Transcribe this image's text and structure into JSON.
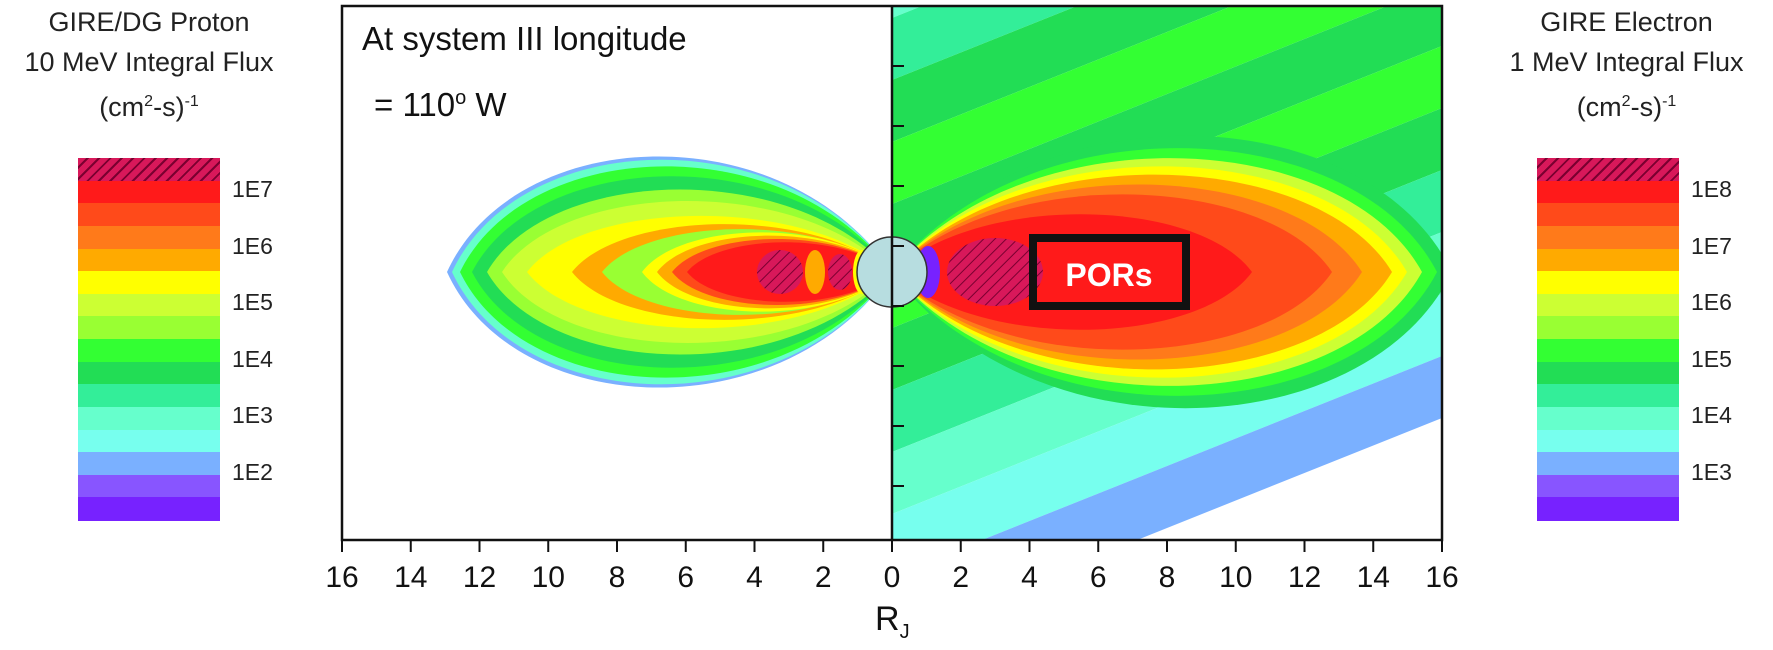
{
  "chart_data": {
    "type": "heatmap",
    "annotation": {
      "line1": "At system III longitude",
      "line2_prefix": "= 110",
      "line2_sup": "o",
      "line2_suffix": " W"
    },
    "region_label": "PORs",
    "xlabel_main": "R",
    "xlabel_sub": "J",
    "x_ticks": [
      "16",
      "14",
      "12",
      "10",
      "8",
      "6",
      "4",
      "2",
      "0",
      "2",
      "4",
      "6",
      "8",
      "10",
      "12",
      "14",
      "16"
    ],
    "xlim": [
      -16,
      16
    ],
    "left_legend": {
      "title_line1": "GIRE/DG Proton",
      "title_line2": "10 MeV Integral Flux",
      "title_unit_prefix": "(cm",
      "title_unit_sup1": "2",
      "title_unit_mid": "-s)",
      "title_unit_sup2": "-1",
      "labels": [
        "1E7",
        "1E6",
        "1E5",
        "1E4",
        "1E3",
        "1E2"
      ]
    },
    "right_legend": {
      "title_line1": "GIRE Electron",
      "title_line2": "1 MeV Integral Flux",
      "title_unit_prefix": "(cm",
      "title_unit_sup1": "2",
      "title_unit_mid": "-s)",
      "title_unit_sup2": "-1",
      "labels": [
        "1E8",
        "1E7",
        "1E6",
        "1E5",
        "1E4",
        "1E3"
      ]
    },
    "colors": [
      "#d8185a",
      "#ff1a1a",
      "#ff4a1a",
      "#ff7a1a",
      "#ffaa00",
      "#ffff00",
      "#ccff33",
      "#99ff33",
      "#33ff33",
      "#22dd55",
      "#33ee99",
      "#66ffcc",
      "#77ffee",
      "#7ab0ff",
      "#8855ff",
      "#7722ff"
    ],
    "jupiter_color": "#b7dde0"
  }
}
